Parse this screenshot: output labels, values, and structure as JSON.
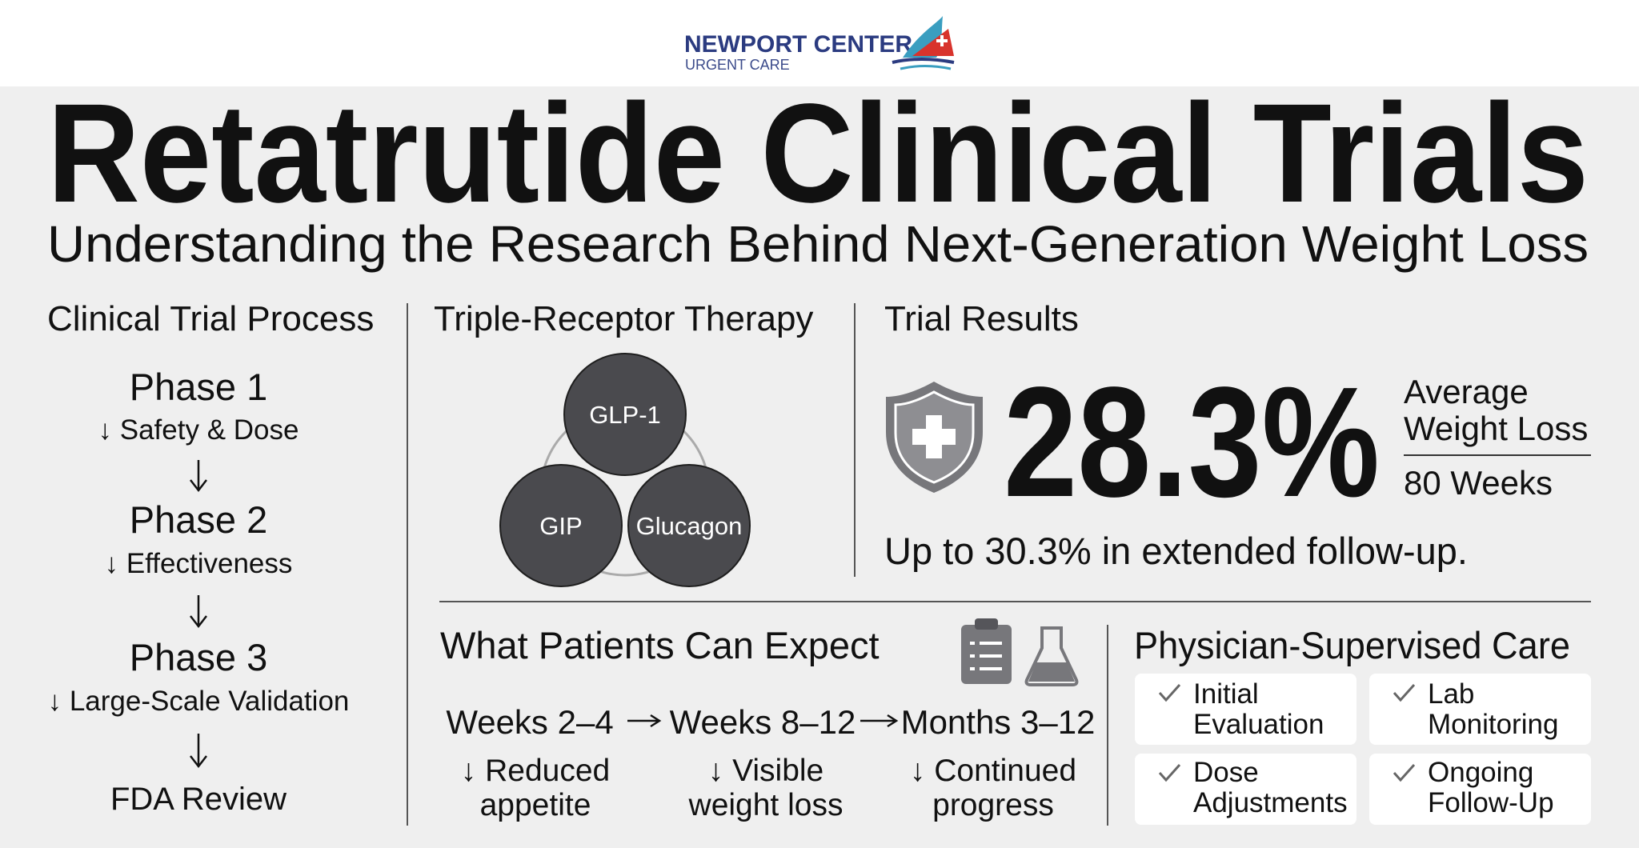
{
  "header": {
    "brand": "NEWPORT CENTER",
    "subbrand": "URGENT CARE"
  },
  "title": "Retatrutide Clinical Trials",
  "subtitle": "Understanding the Research Behind Next-Generation Weight Loss",
  "process": {
    "heading": "Clinical Trial Process",
    "steps": [
      {
        "phase": "Phase 1",
        "detail": "↓ Safety & Dose"
      },
      {
        "phase": "Phase 2",
        "detail": "↓ Effectiveness"
      },
      {
        "phase": "Phase 3",
        "detail": "↓ Large-Scale Validation"
      }
    ],
    "final": "FDA Review"
  },
  "therapy": {
    "heading": "Triple-Receptor Therapy",
    "receptors": [
      "GLP-1",
      "GIP",
      "Glucagon"
    ]
  },
  "results": {
    "heading": "Trial Results",
    "value": "28.3%",
    "label_lines": [
      "Average",
      "Weight Loss"
    ],
    "duration": "80 Weeks",
    "note": "Up to 30.3% in extended follow-up."
  },
  "expect": {
    "heading": "What Patients Can Expect",
    "stages": [
      {
        "period": "Weeks 2–4",
        "detail_lines": [
          "↓ Reduced",
          "appetite"
        ]
      },
      {
        "period": "Weeks 8–12",
        "detail_lines": [
          "↓ Visible",
          "weight loss"
        ]
      },
      {
        "period": "Months 3–12",
        "detail_lines": [
          "↓ Continued",
          "progress"
        ]
      }
    ]
  },
  "care": {
    "heading": "Physician-Supervised Care",
    "items": [
      {
        "lines": [
          "Initial",
          "Evaluation"
        ]
      },
      {
        "lines": [
          "Lab",
          "Monitoring"
        ]
      },
      {
        "lines": [
          "Dose",
          "Adjustments"
        ]
      },
      {
        "lines": [
          "Ongoing",
          "Follow-Up"
        ]
      }
    ]
  }
}
